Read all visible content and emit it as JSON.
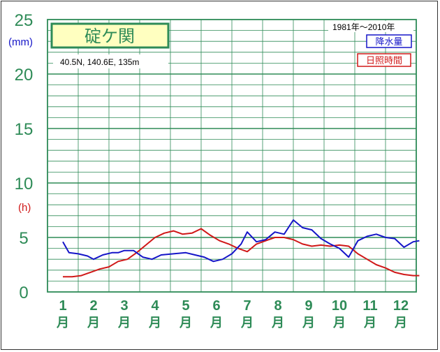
{
  "chart_data": {
    "type": "line",
    "title": "碇ケ関",
    "station_info": "40.5N,  140.6E,  135m",
    "period": "1981年～2010年",
    "ylim": [
      0,
      25
    ],
    "yticks": [
      "0",
      "5",
      "10",
      "15",
      "20",
      "25"
    ],
    "y_unit_precip": "(mm)",
    "y_unit_sunshine": "(h)",
    "month_numbers": [
      "1",
      "2",
      "3",
      "4",
      "5",
      "6",
      "7",
      "8",
      "9",
      "10",
      "11",
      "12"
    ],
    "month_suffix": "月",
    "grid": true,
    "legend_position": "top-right",
    "series": [
      {
        "name": "降水量",
        "color": "#1515c8",
        "x": [
          1,
          1.2,
          1.5,
          1.8,
          2.0,
          2.3,
          2.6,
          2.8,
          3.0,
          3.3,
          3.6,
          3.9,
          4.2,
          4.6,
          5.0,
          5.3,
          5.6,
          5.9,
          6.2,
          6.5,
          6.8,
          7.0,
          7.3,
          7.6,
          7.9,
          8.2,
          8.5,
          8.8,
          9.1,
          9.4,
          9.7,
          10.0,
          10.3,
          10.6,
          10.9,
          11.2,
          11.5,
          11.8,
          12.1,
          12.4,
          12.6
        ],
        "values": [
          4.6,
          3.6,
          3.5,
          3.3,
          3.0,
          3.4,
          3.6,
          3.6,
          3.8,
          3.8,
          3.2,
          3.0,
          3.4,
          3.5,
          3.6,
          3.4,
          3.2,
          2.8,
          3.0,
          3.5,
          4.4,
          5.5,
          4.6,
          4.8,
          5.5,
          5.3,
          6.6,
          5.9,
          5.7,
          4.9,
          4.4,
          4.0,
          3.2,
          4.7,
          5.1,
          5.3,
          5.0,
          4.9,
          4.1,
          4.6,
          4.7
        ]
      },
      {
        "name": "日照時間",
        "color": "#d01818",
        "x": [
          1,
          1.3,
          1.6,
          1.9,
          2.2,
          2.5,
          2.8,
          3.1,
          3.4,
          3.7,
          4.0,
          4.3,
          4.6,
          4.9,
          5.2,
          5.5,
          5.8,
          6.1,
          6.4,
          6.7,
          7.0,
          7.3,
          7.6,
          7.9,
          8.2,
          8.5,
          8.8,
          9.1,
          9.4,
          9.7,
          10.0,
          10.3,
          10.6,
          10.9,
          11.2,
          11.5,
          11.8,
          12.1,
          12.4,
          12.6
        ],
        "values": [
          1.4,
          1.4,
          1.5,
          1.8,
          2.1,
          2.3,
          2.8,
          3.0,
          3.6,
          4.3,
          5.0,
          5.4,
          5.6,
          5.3,
          5.4,
          5.8,
          5.2,
          4.7,
          4.4,
          4.0,
          3.7,
          4.4,
          4.7,
          5.0,
          5.0,
          4.8,
          4.4,
          4.2,
          4.3,
          4.2,
          4.3,
          4.2,
          3.5,
          3.0,
          2.5,
          2.2,
          1.8,
          1.6,
          1.5,
          1.5
        ]
      }
    ]
  },
  "colors": {
    "axis_text": "#2e8b57",
    "grid": "#2e8b57",
    "title_box_bg": "#ffffc0",
    "precip": "#1515c8",
    "sunshine": "#d01818"
  }
}
